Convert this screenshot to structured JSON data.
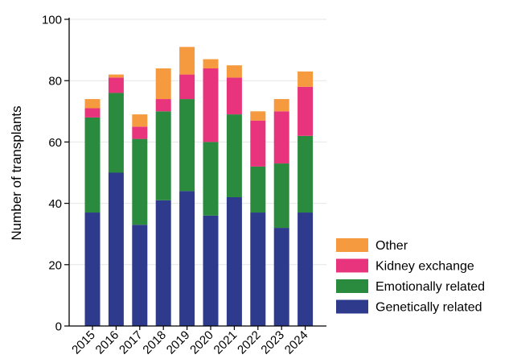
{
  "chart_data": {
    "type": "bar",
    "stacked": true,
    "title": "",
    "xlabel": "",
    "ylabel": "Number of transplants",
    "ylim": [
      0,
      100
    ],
    "yticks": [
      0,
      20,
      40,
      60,
      80,
      100
    ],
    "grid": "horizontal",
    "legend_position": "bottom-right",
    "categories": [
      "2015",
      "2016",
      "2017",
      "2018",
      "2019",
      "2020",
      "2021",
      "2022",
      "2023",
      "2024"
    ],
    "series": [
      {
        "name": "Genetically related",
        "color": "#2e3a8c",
        "values": [
          37,
          50,
          33,
          41,
          44,
          36,
          42,
          37,
          32,
          37
        ]
      },
      {
        "name": "Emotionally related",
        "color": "#2a8a3e",
        "values": [
          31,
          26,
          28,
          29,
          30,
          24,
          27,
          15,
          21,
          25
        ]
      },
      {
        "name": "Kidney exchange",
        "color": "#e8347c",
        "values": [
          3,
          5,
          4,
          4,
          8,
          24,
          12,
          15,
          17,
          16
        ]
      },
      {
        "name": "Other",
        "color": "#f59a3e",
        "values": [
          3,
          1,
          4,
          10,
          9,
          3,
          4,
          3,
          4,
          5
        ]
      }
    ],
    "legend_order": [
      "Other",
      "Kidney exchange",
      "Emotionally related",
      "Genetically related"
    ]
  }
}
